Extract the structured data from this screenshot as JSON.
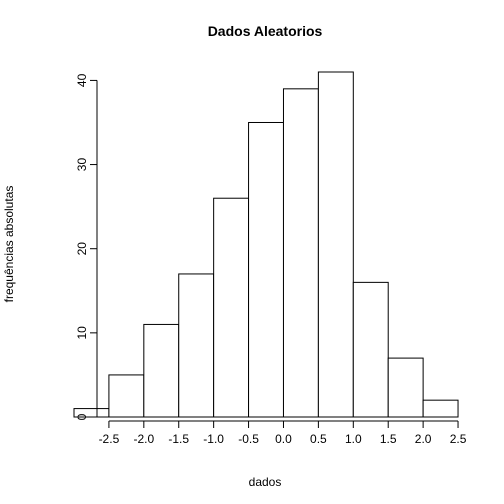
{
  "chart_data": {
    "type": "bar",
    "title": "Dados Aleatorios",
    "xlabel": "dados",
    "ylabel": "frequências absolutas",
    "bins": [
      {
        "from": -3.0,
        "to": -2.5,
        "count": 1
      },
      {
        "from": -2.5,
        "to": -2.0,
        "count": 5
      },
      {
        "from": -2.0,
        "to": -1.5,
        "count": 11
      },
      {
        "from": -1.5,
        "to": -1.0,
        "count": 17
      },
      {
        "from": -1.0,
        "to": -0.5,
        "count": 26
      },
      {
        "from": -0.5,
        "to": 0.0,
        "count": 35
      },
      {
        "from": 0.0,
        "to": 0.5,
        "count": 39
      },
      {
        "from": 0.5,
        "to": 1.0,
        "count": 41
      },
      {
        "from": 1.0,
        "to": 1.5,
        "count": 16
      },
      {
        "from": 1.5,
        "to": 2.0,
        "count": 7
      },
      {
        "from": 2.0,
        "to": 2.5,
        "count": 2
      }
    ],
    "x_ticks": [
      -2.5,
      -2.0,
      -1.5,
      -1.0,
      -0.5,
      0.0,
      0.5,
      1.0,
      1.5,
      2.0,
      2.5
    ],
    "x_tick_labels": [
      "-2.5",
      "-2.0",
      "-1.5",
      "-1.0",
      "-0.5",
      "0.0",
      "0.5",
      "1.0",
      "1.5",
      "2.0",
      "2.5"
    ],
    "y_ticks": [
      0,
      10,
      20,
      30,
      40
    ],
    "y_tick_labels": [
      "0",
      "10",
      "20",
      "30",
      "40"
    ],
    "xlim": [
      -3.0,
      2.7
    ],
    "ylim": [
      0,
      41
    ],
    "grid": false,
    "bar_fill": "#ffffff",
    "bar_stroke": "#000000"
  }
}
